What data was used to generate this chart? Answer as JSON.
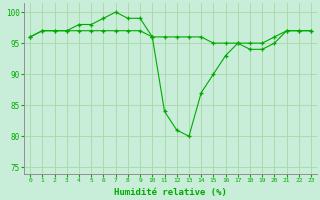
{
  "x": [
    0,
    1,
    2,
    3,
    4,
    5,
    6,
    7,
    8,
    9,
    10,
    11,
    12,
    13,
    14,
    15,
    16,
    17,
    18,
    19,
    20,
    21,
    22,
    23
  ],
  "line1": [
    96,
    97,
    97,
    97,
    98,
    98,
    99,
    100,
    99,
    99,
    96,
    null,
    null,
    null,
    null,
    null,
    null,
    null,
    null,
    null,
    null,
    null,
    null,
    null
  ],
  "line2": [
    96,
    97,
    97,
    97,
    97,
    97,
    97,
    97,
    97,
    97,
    96,
    96,
    96,
    96,
    96,
    95,
    95,
    95,
    95,
    95,
    96,
    97,
    97,
    97
  ],
  "line3": [
    null,
    null,
    null,
    null,
    null,
    null,
    null,
    null,
    null,
    null,
    96,
    84,
    81,
    80,
    87,
    90,
    93,
    95,
    94,
    94,
    95,
    97,
    97,
    97
  ],
  "background_color": "#c8edd8",
  "grid_color": "#a8d8a8",
  "line_color": "#00aa00",
  "xlabel": "Humidité relative (%)",
  "ylim": [
    74,
    101.5
  ],
  "xlim": [
    -0.5,
    23.5
  ],
  "yticks": [
    75,
    80,
    85,
    90,
    95,
    100
  ],
  "xticks": [
    0,
    1,
    2,
    3,
    4,
    5,
    6,
    7,
    8,
    9,
    10,
    11,
    12,
    13,
    14,
    15,
    16,
    17,
    18,
    19,
    20,
    21,
    22,
    23
  ]
}
